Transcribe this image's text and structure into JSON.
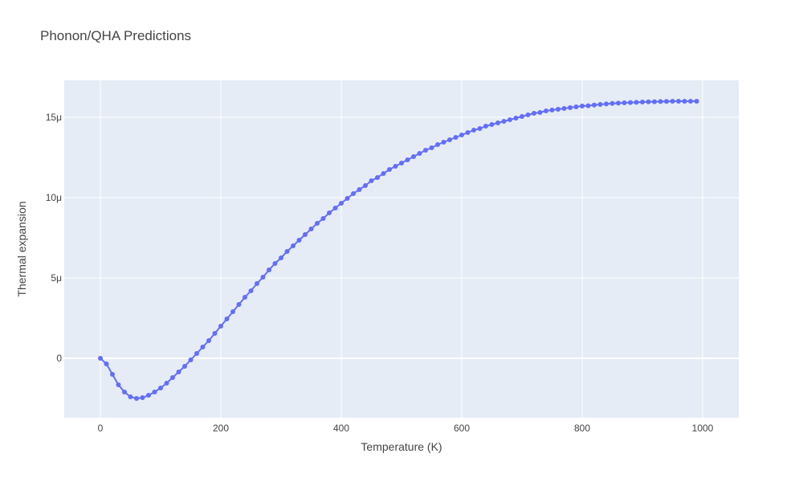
{
  "chart_data": {
    "type": "line",
    "title": "Phonon/QHA Predictions",
    "xlabel": "Temperature (K)",
    "ylabel": "Thermal expansion",
    "xlim": [
      -60,
      1060
    ],
    "ylim": [
      -3.7e-06,
      1.73e-05
    ],
    "x_ticks": [
      0,
      200,
      400,
      600,
      800,
      1000
    ],
    "x_tick_labels": [
      "0",
      "200",
      "400",
      "600",
      "800",
      "1000"
    ],
    "y_ticks": [
      0,
      5e-06,
      1e-05,
      1.5e-05
    ],
    "y_tick_labels": [
      "0",
      "5μ",
      "10μ",
      "15μ"
    ],
    "grid": true,
    "colors": {
      "plot_bg": "#E5ECF6",
      "grid": "#FFFFFF",
      "series": "#636EFA",
      "text": "#444444"
    },
    "series": [
      {
        "mode": "lines+markers",
        "x": [
          0,
          10,
          20,
          30,
          40,
          50,
          60,
          70,
          80,
          90,
          100,
          110,
          120,
          130,
          140,
          150,
          160,
          170,
          180,
          190,
          200,
          210,
          220,
          230,
          240,
          250,
          260,
          270,
          280,
          290,
          300,
          310,
          320,
          330,
          340,
          350,
          360,
          370,
          380,
          390,
          400,
          410,
          420,
          430,
          440,
          450,
          460,
          470,
          480,
          490,
          500,
          510,
          520,
          530,
          540,
          550,
          560,
          570,
          580,
          590,
          600,
          610,
          620,
          630,
          640,
          650,
          660,
          670,
          680,
          690,
          700,
          710,
          720,
          730,
          740,
          750,
          760,
          770,
          780,
          790,
          800,
          810,
          820,
          830,
          840,
          850,
          860,
          870,
          880,
          890,
          900,
          910,
          920,
          930,
          940,
          950,
          960,
          970,
          980,
          990
        ],
        "y": [
          0,
          -3.5e-07,
          -1e-06,
          -1.65e-06,
          -2.1e-06,
          -2.4e-06,
          -2.5e-06,
          -2.45e-06,
          -2.3e-06,
          -2.1e-06,
          -1.85e-06,
          -1.55e-06,
          -1.2e-06,
          -8.5e-07,
          -5e-07,
          -1e-07,
          3e-07,
          7e-07,
          1.1e-06,
          1.55e-06,
          2e-06,
          2.45e-06,
          2.9e-06,
          3.35e-06,
          3.8e-06,
          4.2e-06,
          4.65e-06,
          5.05e-06,
          5.5e-06,
          5.9e-06,
          6.25e-06,
          6.65e-06,
          7e-06,
          7.35e-06,
          7.7e-06,
          8.05e-06,
          8.4e-06,
          8.7e-06,
          9.05e-06,
          9.35e-06,
          9.65e-06,
          9.95e-06,
          1.025e-05,
          1.05e-05,
          1.075e-05,
          1.105e-05,
          1.125e-05,
          1.15e-05,
          1.175e-05,
          1.195e-05,
          1.215e-05,
          1.235e-05,
          1.255e-05,
          1.275e-05,
          1.295e-05,
          1.31e-05,
          1.33e-05,
          1.345e-05,
          1.36e-05,
          1.375e-05,
          1.39e-05,
          1.405e-05,
          1.42e-05,
          1.43e-05,
          1.445e-05,
          1.455e-05,
          1.465e-05,
          1.475e-05,
          1.485e-05,
          1.495e-05,
          1.505e-05,
          1.515e-05,
          1.525e-05,
          1.53e-05,
          1.54e-05,
          1.545e-05,
          1.55e-05,
          1.555e-05,
          1.56e-05,
          1.565e-05,
          1.57e-05,
          1.572e-05,
          1.576e-05,
          1.58e-05,
          1.583e-05,
          1.586e-05,
          1.588e-05,
          1.59e-05,
          1.592e-05,
          1.593e-05,
          1.595e-05,
          1.596e-05,
          1.597e-05,
          1.598e-05,
          1.599e-05,
          1.6e-05,
          1.6e-05,
          1.6e-05,
          1.6e-05,
          1.6e-05
        ]
      }
    ]
  }
}
